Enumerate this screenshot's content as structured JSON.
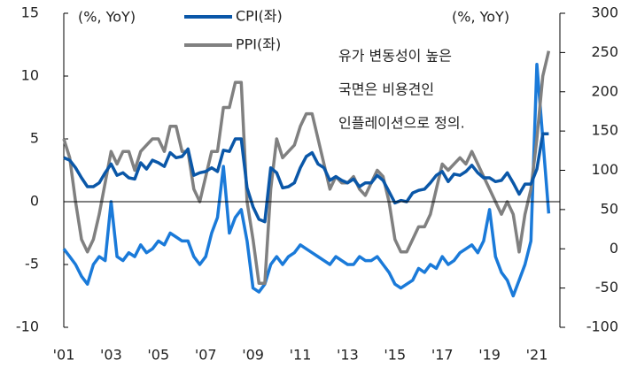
{
  "chart_data": {
    "type": "line",
    "axis_unit_left": "(%, YoY)",
    "axis_unit_right": "(%, YoY)",
    "annotation": [
      "유가 변동성이 높은",
      "국면은 비용견인",
      "인플레이션으로 정의."
    ],
    "categories": [
      "'01",
      null,
      null,
      null,
      null,
      null,
      null,
      null,
      "'03",
      null,
      null,
      null,
      null,
      null,
      null,
      null,
      "'05",
      null,
      null,
      null,
      null,
      null,
      null,
      null,
      "'07",
      null,
      null,
      null,
      null,
      null,
      null,
      null,
      "'09",
      null,
      null,
      null,
      null,
      null,
      null,
      null,
      "'11",
      null,
      null,
      null,
      null,
      null,
      null,
      null,
      "'13",
      null,
      null,
      null,
      null,
      null,
      null,
      null,
      "'15",
      null,
      null,
      null,
      null,
      null,
      null,
      null,
      "'17",
      null,
      null,
      null,
      null,
      null,
      null,
      null,
      "'19",
      null,
      null,
      null,
      null,
      null,
      null,
      null,
      "'21",
      null,
      null
    ],
    "ylim": [
      -10,
      15
    ],
    "yticks": [
      -10,
      -5,
      0,
      5,
      10,
      15
    ],
    "y2lim": [
      -100,
      300
    ],
    "y2ticks": [
      -100,
      -50,
      0,
      50,
      100,
      150,
      200,
      250,
      300
    ],
    "series": [
      {
        "name": "CPI(좌)",
        "color": "#0a57a8",
        "values": [
          3.5,
          3.3,
          2.7,
          1.9,
          1.2,
          1.2,
          1.5,
          2.3,
          3.0,
          2.1,
          2.3,
          1.9,
          1.8,
          3.1,
          2.6,
          3.3,
          3.1,
          2.8,
          3.9,
          3.5,
          3.6,
          4.2,
          2.1,
          2.3,
          2.4,
          2.7,
          2.4,
          4.1,
          4.0,
          5.0,
          5.0,
          1.1,
          -0.4,
          -1.4,
          -1.6,
          2.7,
          2.3,
          1.1,
          1.2,
          1.5,
          2.7,
          3.6,
          3.9,
          3.0,
          2.7,
          1.7,
          2.0,
          1.7,
          1.5,
          1.8,
          1.2,
          1.5,
          1.5,
          2.1,
          1.7,
          0.8,
          -0.1,
          0.1,
          0.0,
          0.7,
          0.9,
          1.0,
          1.5,
          2.1,
          2.4,
          1.6,
          2.2,
          2.1,
          2.4,
          2.9,
          2.3,
          1.9,
          1.9,
          1.6,
          1.7,
          2.3,
          1.5,
          0.6,
          1.4,
          1.4,
          2.6,
          5.4,
          5.4
        ]
      },
      {
        "name": "PPI(좌)",
        "color": "#808080",
        "values": [
          5,
          3.5,
          0,
          -3,
          -4,
          -3,
          -1,
          1.5,
          4,
          3,
          4,
          4,
          2.5,
          4,
          4.5,
          5,
          5,
          4,
          6,
          6,
          4,
          4,
          1,
          0,
          2,
          4,
          4,
          7.5,
          7.5,
          9.5,
          9.5,
          0,
          -3,
          -6.5,
          -6.5,
          1,
          5,
          3.5,
          4,
          4.5,
          6,
          7,
          7,
          5,
          3,
          1,
          2,
          1.5,
          1.5,
          2,
          1,
          0.5,
          1.5,
          2.5,
          2,
          0,
          -3,
          -4,
          -4,
          -3,
          -2,
          -2,
          -1,
          1,
          3,
          2.5,
          3,
          3.5,
          3,
          4,
          3,
          2,
          1,
          0,
          -1,
          0,
          -1,
          -4,
          -1,
          1,
          5,
          10,
          12
        ]
      },
      {
        "color": "#1a7ad9",
        "axis": "y2",
        "values": [
          0,
          -10,
          -20,
          -35,
          -45,
          -20,
          -10,
          -15,
          60,
          -10,
          -15,
          -5,
          -10,
          5,
          -5,
          0,
          10,
          5,
          20,
          15,
          10,
          10,
          -10,
          -20,
          -10,
          20,
          40,
          105,
          20,
          40,
          50,
          10,
          -50,
          -55,
          -45,
          -20,
          -10,
          -20,
          -10,
          -5,
          5,
          0,
          -5,
          -10,
          -15,
          -20,
          -10,
          -15,
          -20,
          -20,
          -10,
          -15,
          -15,
          -10,
          -20,
          -30,
          -45,
          -50,
          -45,
          -40,
          -25,
          -30,
          -20,
          -25,
          -10,
          -20,
          -15,
          -5,
          0,
          5,
          -5,
          10,
          50,
          -10,
          -30,
          -40,
          -60,
          -40,
          -20,
          10,
          235,
          140,
          45
        ]
      }
    ]
  }
}
